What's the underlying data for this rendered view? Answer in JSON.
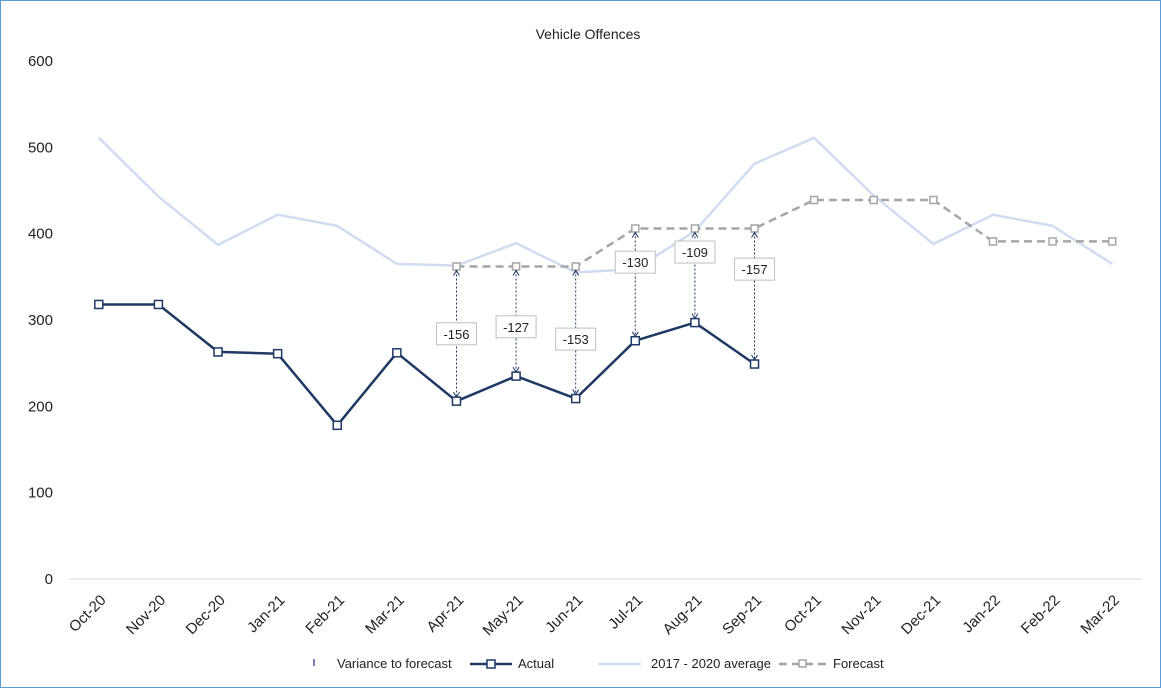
{
  "chart_data": {
    "type": "line",
    "title": "Vehicle Offences",
    "categories": [
      "Oct-20",
      "Nov-20",
      "Dec-20",
      "Jan-21",
      "Feb-21",
      "Mar-21",
      "Apr-21",
      "May-21",
      "Jun-21",
      "Jul-21",
      "Aug-21",
      "Sep-21",
      "Oct-21",
      "Nov-21",
      "Dec-21",
      "Jan-22",
      "Feb-22",
      "Mar-22"
    ],
    "ylim": [
      0,
      600
    ],
    "yticks": [
      0,
      100,
      200,
      300,
      400,
      500,
      600
    ],
    "grid": false,
    "legend_position": "bottom",
    "series": [
      {
        "name": "Actual",
        "color": "#1f3864",
        "style": "solid-square-markers",
        "values": [
          318,
          318,
          263,
          261,
          178,
          262,
          206,
          235,
          209,
          276,
          297,
          249,
          null,
          null,
          null,
          null,
          null,
          null
        ]
      },
      {
        "name": "2017 - 2020 average",
        "color": "#d0dcef",
        "style": "solid",
        "values": [
          511,
          443,
          387,
          422,
          409,
          365,
          363,
          389,
          355,
          359,
          403,
          481,
          511,
          444,
          388,
          422,
          409,
          365
        ]
      },
      {
        "name": "Forecast",
        "color": "#a6a6a6",
        "style": "dashed-square-markers",
        "values": [
          null,
          null,
          null,
          null,
          null,
          null,
          362,
          362,
          362,
          406,
          406,
          406,
          439,
          439,
          439,
          391,
          391,
          391
        ]
      }
    ],
    "variance": {
      "name": "Variance to forecast",
      "color": "#1f3864",
      "items": [
        {
          "category": "Apr-21",
          "value": -156
        },
        {
          "category": "May-21",
          "value": -127
        },
        {
          "category": "Jun-21",
          "value": -153
        },
        {
          "category": "Jul-21",
          "value": -130
        },
        {
          "category": "Aug-21",
          "value": -109
        },
        {
          "category": "Sep-21",
          "value": -157
        }
      ]
    },
    "legend": [
      "Variance to forecast",
      "Actual",
      "2017 - 2020 average",
      "Forecast"
    ]
  }
}
